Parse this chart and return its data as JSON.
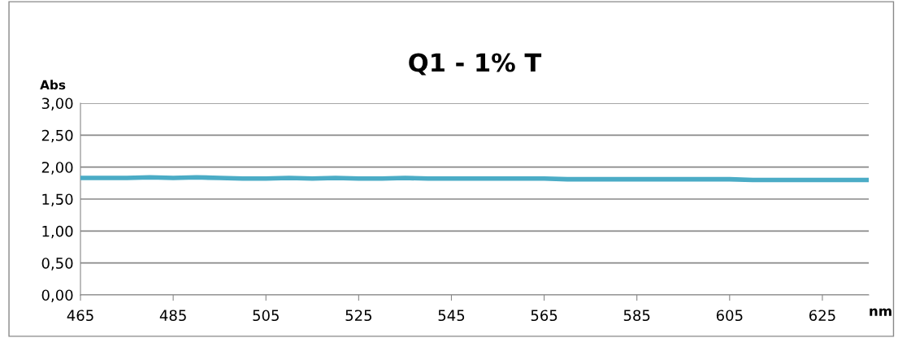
{
  "chart_data": {
    "type": "line",
    "title": "Q1 - 1% T",
    "xlabel": "nm",
    "ylabel": "Abs",
    "series": [
      {
        "color": "#4bacc6",
        "x": [
          465,
          470,
          475,
          480,
          485,
          490,
          495,
          500,
          505,
          510,
          515,
          520,
          525,
          530,
          535,
          540,
          545,
          550,
          555,
          560,
          565,
          570,
          575,
          580,
          585,
          590,
          595,
          600,
          605,
          610,
          615,
          620,
          625,
          630,
          635
        ],
        "values": [
          1.83,
          1.83,
          1.83,
          1.84,
          1.83,
          1.84,
          1.83,
          1.82,
          1.82,
          1.83,
          1.82,
          1.83,
          1.82,
          1.82,
          1.83,
          1.82,
          1.82,
          1.82,
          1.82,
          1.82,
          1.82,
          1.81,
          1.81,
          1.81,
          1.81,
          1.81,
          1.81,
          1.81,
          1.81,
          1.8,
          1.8,
          1.8,
          1.8,
          1.8,
          1.8
        ]
      }
    ],
    "xlim": [
      465,
      635
    ],
    "xticks": [
      465,
      485,
      505,
      525,
      545,
      565,
      585,
      605,
      625
    ],
    "ylim": [
      0,
      3
    ],
    "yticks": [
      {
        "value": 0,
        "label": "0,00"
      },
      {
        "value": 0.5,
        "label": "0,50"
      },
      {
        "value": 1,
        "label": "1,00"
      },
      {
        "value": 1.5,
        "label": "1,50"
      },
      {
        "value": 2,
        "label": "2,00"
      },
      {
        "value": 2.5,
        "label": "2,50"
      },
      {
        "value": 3,
        "label": "3,00"
      }
    ],
    "grid": "y",
    "legend": false,
    "marker": "none",
    "line_style": "solid"
  }
}
